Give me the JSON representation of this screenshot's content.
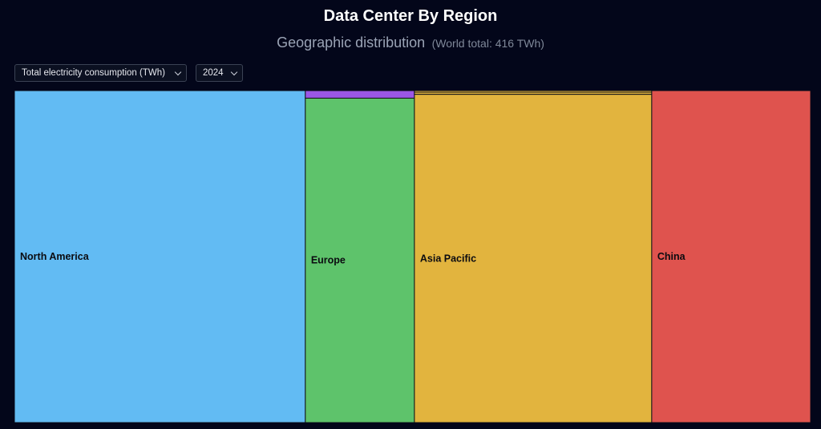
{
  "header": {
    "title": "Data Center By Region",
    "subtitle": "Geographic distribution",
    "subtitle_note": "(World total: 416 TWh)"
  },
  "controls": {
    "metric_value": "Total electricity consumption (TWh)",
    "year_value": "2024"
  },
  "chart_data": {
    "type": "treemap",
    "title": "Data Center By Region",
    "subtitle": "Geographic distribution",
    "unit": "TWh",
    "total": 416,
    "year": "2024",
    "metric": "Total electricity consumption (TWh)",
    "regions": [
      {
        "name": "North America",
        "value": 152,
        "color": "#62bbf3",
        "children": []
      },
      {
        "name": "Europe",
        "value": 57,
        "color": "#5ec36b",
        "children": [
          {
            "name": "",
            "value": 1.3,
            "color": "#9b57e6"
          }
        ]
      },
      {
        "name": "Asia Pacific",
        "value": 124,
        "color": "#e2b43e",
        "children": [
          {
            "name": "",
            "value": 0.6,
            "color": "#e2b43e"
          },
          {
            "name": "",
            "value": 0.8,
            "color": "#e2b43e"
          }
        ]
      },
      {
        "name": "China",
        "value": 83,
        "color": "#df534e",
        "children": []
      }
    ]
  }
}
